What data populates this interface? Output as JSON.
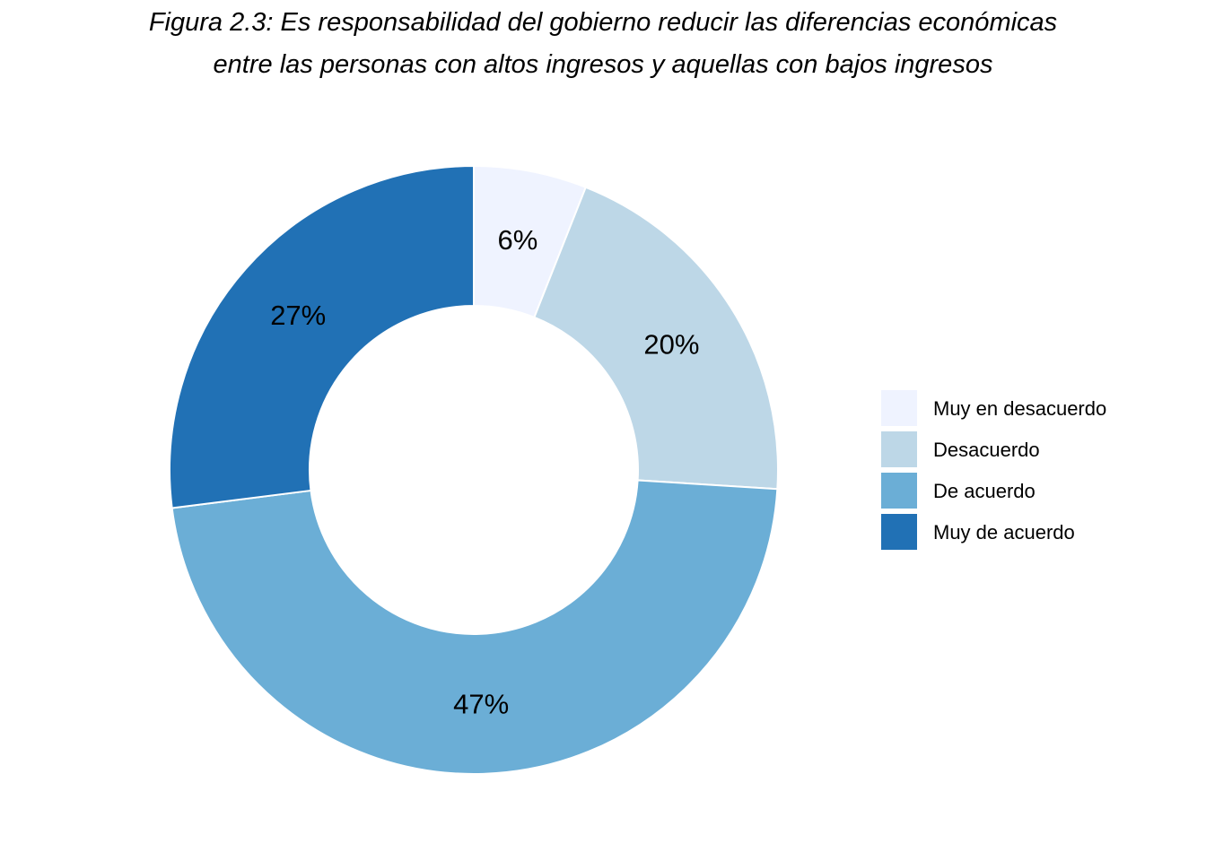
{
  "chart_data": {
    "type": "pie",
    "variant": "donut",
    "title_lines": [
      "Figura 2.3: Es responsabilidad del gobierno reducir las diferencias económicas",
      "entre las personas con altos ingresos y aquellas con bajos ingresos"
    ],
    "categories": [
      "Muy en desacuerdo",
      "Desacuerdo",
      "De acuerdo",
      "Muy de acuerdo"
    ],
    "values": [
      6,
      20,
      47,
      27
    ],
    "value_labels": [
      "6%",
      "20%",
      "47%",
      "27%"
    ],
    "colors": [
      "#EFF3FF",
      "#BDD7E7",
      "#6BAED6",
      "#2171B5"
    ],
    "start_angle": "top",
    "direction": "clockwise",
    "legend_position": "right"
  }
}
